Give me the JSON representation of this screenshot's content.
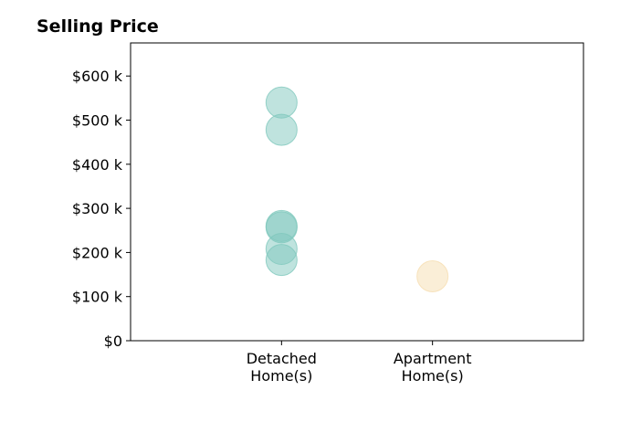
{
  "chart_data": {
    "type": "scatter",
    "title": "Selling Price",
    "xlabel": "",
    "ylabel": "",
    "categories": [
      {
        "name": "detached",
        "lines": [
          "Detached",
          "Home(s)"
        ]
      },
      {
        "name": "apartment",
        "lines": [
          "Apartment",
          "Home(s)"
        ]
      }
    ],
    "x_range": [
      -1,
      2
    ],
    "ylim": [
      0,
      675000
    ],
    "yticks": [
      {
        "value": 0,
        "label": "$0"
      },
      {
        "value": 100000,
        "label": "$100 k"
      },
      {
        "value": 200000,
        "label": "$200 k"
      },
      {
        "value": 300000,
        "label": "$300 k"
      },
      {
        "value": 400000,
        "label": "$400 k"
      },
      {
        "value": 500000,
        "label": "$500 k"
      },
      {
        "value": 600000,
        "label": "$600 k"
      }
    ],
    "grid": false,
    "series": [
      {
        "category_index": 0,
        "color": "#7fc8bd",
        "values": [
          540000,
          478000,
          260000,
          257000,
          208000,
          183000
        ]
      },
      {
        "category_index": 1,
        "color": "#f6ddb0",
        "values": [
          146000
        ]
      }
    ]
  }
}
